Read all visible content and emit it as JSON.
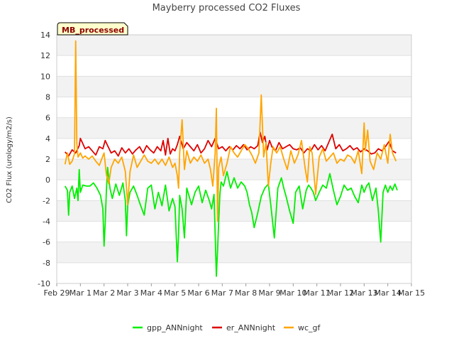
{
  "chart_data": {
    "type": "line",
    "title": "Mayberry processed CO2 Fluxes",
    "xlabel": "",
    "ylabel": "CO2 Flux (urology/m2/s)",
    "badge": "MB_processed",
    "xlim": [
      0,
      15
    ],
    "ylim": [
      -10,
      14
    ],
    "yticks": [
      -10,
      -8,
      -6,
      -4,
      -2,
      0,
      2,
      4,
      6,
      8,
      10,
      12,
      14
    ],
    "xticks": [
      {
        "value": 0,
        "label": "Feb 29"
      },
      {
        "value": 1,
        "label": "Mar 1"
      },
      {
        "value": 2,
        "label": "Mar 2"
      },
      {
        "value": 3,
        "label": "Mar 3"
      },
      {
        "value": 4,
        "label": "Mar 4"
      },
      {
        "value": 5,
        "label": "Mar 5"
      },
      {
        "value": 6,
        "label": "Mar 6"
      },
      {
        "value": 7,
        "label": "Mar 7"
      },
      {
        "value": 8,
        "label": "Mar 8"
      },
      {
        "value": 9,
        "label": "Mar 9"
      },
      {
        "value": 10,
        "label": "Mar 10"
      },
      {
        "value": 11,
        "label": "Mar 11"
      },
      {
        "value": 12,
        "label": "Mar 12"
      },
      {
        "value": 13,
        "label": "Mar 13"
      },
      {
        "value": 14,
        "label": "Mar 14"
      },
      {
        "value": 15,
        "label": "Mar 15"
      }
    ],
    "series": [
      {
        "name": "gpp_ANNnight",
        "color": "#00ee00",
        "x": [
          0.35,
          0.45,
          0.5,
          0.55,
          0.65,
          0.75,
          0.85,
          0.9,
          0.95,
          1.0,
          1.1,
          1.25,
          1.4,
          1.55,
          1.7,
          1.85,
          1.95,
          2.0,
          2.05,
          2.1,
          2.15,
          2.25,
          2.35,
          2.5,
          2.65,
          2.8,
          2.9,
          2.95,
          3.0,
          3.1,
          3.25,
          3.4,
          3.55,
          3.7,
          3.85,
          4.0,
          4.15,
          4.3,
          4.45,
          4.6,
          4.75,
          4.9,
          5.0,
          5.1,
          5.15,
          5.2,
          5.3,
          5.4,
          5.5,
          5.6,
          5.7,
          5.85,
          6.0,
          6.15,
          6.3,
          6.45,
          6.55,
          6.65,
          6.75,
          6.8,
          6.85,
          6.9,
          6.95,
          7.05,
          7.2,
          7.35,
          7.5,
          7.65,
          7.8,
          7.95,
          8.05,
          8.15,
          8.25,
          8.35,
          8.5,
          8.65,
          8.8,
          8.95,
          9.05,
          9.2,
          9.35,
          9.5,
          9.6,
          9.7,
          9.85,
          10.0,
          10.1,
          10.25,
          10.4,
          10.55,
          10.65,
          10.75,
          10.85,
          10.95,
          11.1,
          11.25,
          11.4,
          11.55,
          11.7,
          11.85,
          12.0,
          12.15,
          12.3,
          12.45,
          12.6,
          12.75,
          12.9,
          13.0,
          13.1,
          13.2,
          13.35,
          13.5,
          13.6,
          13.7,
          13.8,
          13.9,
          14.0,
          14.1,
          14.2,
          14.3,
          14.4
        ],
        "y": [
          -0.6,
          -1.0,
          -3.4,
          -1.2,
          -0.6,
          -1.8,
          -0.8,
          -2.0,
          1.0,
          -1.2,
          -0.5,
          -0.6,
          -0.6,
          -0.3,
          -0.8,
          -1.5,
          -2.8,
          -6.4,
          -4.2,
          -1.0,
          1.2,
          -0.8,
          -1.8,
          -0.4,
          -1.5,
          -0.3,
          -2.0,
          -5.4,
          -2.5,
          -1.2,
          -0.6,
          -1.5,
          -2.5,
          -3.4,
          -0.8,
          -0.5,
          -2.8,
          -1.2,
          -2.5,
          -0.5,
          -3.0,
          -1.8,
          -2.6,
          -7.9,
          -5.4,
          -1.5,
          -2.8,
          -5.6,
          -0.8,
          -1.6,
          -2.4,
          -1.2,
          -0.6,
          -2.2,
          -1.0,
          -2.0,
          -2.8,
          -1.4,
          -9.3,
          -6.8,
          -4.0,
          -1.4,
          -0.2,
          -0.6,
          0.8,
          -0.8,
          0.2,
          -0.8,
          -0.2,
          -0.6,
          -1.2,
          -2.4,
          -3.2,
          -4.6,
          -3.2,
          -1.6,
          -0.8,
          -0.4,
          -2.4,
          -5.6,
          -0.8,
          0.2,
          -0.8,
          -1.6,
          -3.0,
          -4.2,
          -1.2,
          -0.6,
          -2.8,
          -1.0,
          -0.5,
          -0.8,
          -1.2,
          -2.0,
          -1.2,
          -0.5,
          -0.8,
          0.6,
          -1.0,
          -2.4,
          -1.6,
          -0.5,
          -1.0,
          -0.8,
          -1.6,
          -2.2,
          -0.5,
          -1.2,
          -0.6,
          -0.3,
          -2.0,
          -0.8,
          -3.0,
          -6.0,
          -1.2,
          -0.5,
          -1.2,
          -0.6,
          -1.0,
          -0.4,
          -1.0
        ]
      },
      {
        "name": "er_ANNnight",
        "color": "#dd0000",
        "x": [
          0.35,
          0.5,
          0.65,
          0.8,
          0.95,
          1.0,
          1.1,
          1.2,
          1.35,
          1.5,
          1.65,
          1.8,
          1.95,
          2.05,
          2.15,
          2.3,
          2.45,
          2.6,
          2.75,
          2.9,
          3.05,
          3.2,
          3.35,
          3.5,
          3.65,
          3.8,
          3.95,
          4.1,
          4.25,
          4.4,
          4.5,
          4.6,
          4.7,
          4.8,
          4.9,
          5.0,
          5.1,
          5.2,
          5.35,
          5.5,
          5.65,
          5.8,
          5.95,
          6.1,
          6.25,
          6.4,
          6.55,
          6.7,
          6.85,
          7.0,
          7.15,
          7.3,
          7.45,
          7.6,
          7.75,
          7.9,
          8.05,
          8.2,
          8.35,
          8.5,
          8.6,
          8.7,
          8.8,
          8.9,
          9.0,
          9.1,
          9.25,
          9.4,
          9.55,
          9.7,
          9.85,
          10.0,
          10.15,
          10.3,
          10.45,
          10.6,
          10.75,
          10.9,
          11.05,
          11.2,
          11.35,
          11.5,
          11.65,
          11.8,
          11.95,
          12.1,
          12.25,
          12.4,
          12.55,
          12.7,
          12.85,
          13.0,
          13.15,
          13.3,
          13.45,
          13.6,
          13.75,
          13.9,
          14.05,
          14.2,
          14.35
        ],
        "y": [
          2.7,
          2.3,
          2.9,
          2.6,
          3.3,
          4.0,
          3.5,
          3.0,
          3.2,
          2.8,
          2.4,
          3.2,
          3.0,
          3.8,
          3.3,
          2.6,
          2.8,
          2.3,
          3.1,
          2.6,
          3.0,
          2.5,
          2.9,
          3.2,
          2.6,
          3.3,
          2.9,
          2.6,
          3.2,
          2.8,
          3.8,
          2.4,
          4.0,
          2.5,
          3.0,
          2.8,
          3.4,
          4.2,
          3.0,
          3.6,
          3.2,
          2.8,
          3.4,
          2.6,
          3.0,
          3.8,
          3.2,
          4.0,
          3.0,
          3.2,
          2.8,
          3.2,
          2.9,
          3.3,
          3.0,
          3.4,
          2.9,
          3.2,
          3.0,
          3.3,
          4.6,
          3.6,
          4.2,
          2.9,
          3.8,
          3.2,
          2.8,
          3.6,
          3.0,
          3.2,
          3.4,
          3.0,
          2.9,
          3.1,
          2.6,
          3.0,
          2.8,
          3.4,
          2.9,
          3.3,
          2.8,
          3.6,
          4.4,
          3.0,
          3.4,
          2.8,
          3.0,
          3.3,
          2.9,
          3.1,
          2.7,
          3.0,
          2.8,
          2.5,
          2.6,
          3.0,
          2.8,
          3.2,
          3.7,
          2.8,
          2.6
        ]
      },
      {
        "name": "wc_gf",
        "color": "#ffa500",
        "x": [
          0.35,
          0.45,
          0.55,
          0.65,
          0.75,
          0.8,
          0.85,
          0.9,
          1.0,
          1.1,
          1.2,
          1.35,
          1.5,
          1.65,
          1.8,
          1.9,
          2.0,
          2.1,
          2.2,
          2.3,
          2.45,
          2.6,
          2.75,
          2.9,
          3.0,
          3.1,
          3.25,
          3.4,
          3.55,
          3.7,
          3.85,
          4.0,
          4.15,
          4.3,
          4.45,
          4.6,
          4.75,
          4.9,
          5.0,
          5.1,
          5.15,
          5.2,
          5.3,
          5.4,
          5.5,
          5.65,
          5.8,
          5.95,
          6.1,
          6.25,
          6.4,
          6.5,
          6.6,
          6.7,
          6.75,
          6.8,
          6.85,
          6.95,
          7.05,
          7.2,
          7.35,
          7.5,
          7.65,
          7.8,
          7.95,
          8.1,
          8.25,
          8.4,
          8.55,
          8.65,
          8.75,
          8.85,
          8.95,
          9.05,
          9.15,
          9.3,
          9.45,
          9.6,
          9.75,
          9.9,
          10.05,
          10.2,
          10.35,
          10.5,
          10.6,
          10.7,
          10.8,
          10.95,
          11.1,
          11.25,
          11.4,
          11.55,
          11.7,
          11.85,
          12.0,
          12.15,
          12.3,
          12.45,
          12.6,
          12.75,
          12.9,
          13.0,
          13.05,
          13.15,
          13.25,
          13.4,
          13.55,
          13.7,
          13.85,
          14.0,
          14.1,
          14.2,
          14.35
        ],
        "y": [
          1.5,
          2.6,
          1.5,
          1.8,
          2.5,
          13.4,
          3.5,
          2.2,
          2.6,
          2.1,
          2.3,
          2.0,
          2.3,
          1.8,
          1.4,
          2.0,
          2.6,
          0.5,
          -0.4,
          1.2,
          2.0,
          1.6,
          2.2,
          0.8,
          -2.4,
          0.8,
          2.4,
          1.2,
          1.8,
          2.4,
          1.8,
          1.6,
          2.0,
          1.5,
          2.0,
          1.4,
          2.2,
          1.2,
          1.6,
          0.4,
          -0.8,
          2.6,
          5.8,
          1.0,
          2.8,
          1.6,
          2.2,
          1.8,
          2.4,
          1.6,
          2.0,
          1.0,
          -0.6,
          2.6,
          6.9,
          -4.0,
          1.2,
          2.2,
          0.4,
          1.6,
          3.2,
          2.6,
          2.2,
          2.8,
          3.4,
          3.0,
          2.4,
          1.6,
          2.6,
          8.2,
          2.2,
          3.6,
          -0.6,
          1.6,
          3.2,
          2.6,
          3.2,
          2.0,
          1.0,
          2.8,
          1.6,
          2.4,
          3.8,
          1.2,
          -0.2,
          3.2,
          2.6,
          -1.4,
          2.2,
          3.0,
          1.8,
          2.2,
          2.6,
          1.6,
          2.0,
          1.8,
          2.4,
          2.2,
          1.6,
          2.8,
          0.6,
          5.5,
          2.8,
          4.8,
          1.8,
          1.0,
          2.6,
          2.0,
          3.4,
          1.6,
          4.4,
          2.6,
          1.8
        ]
      }
    ],
    "legend_position": "bottom-center"
  }
}
